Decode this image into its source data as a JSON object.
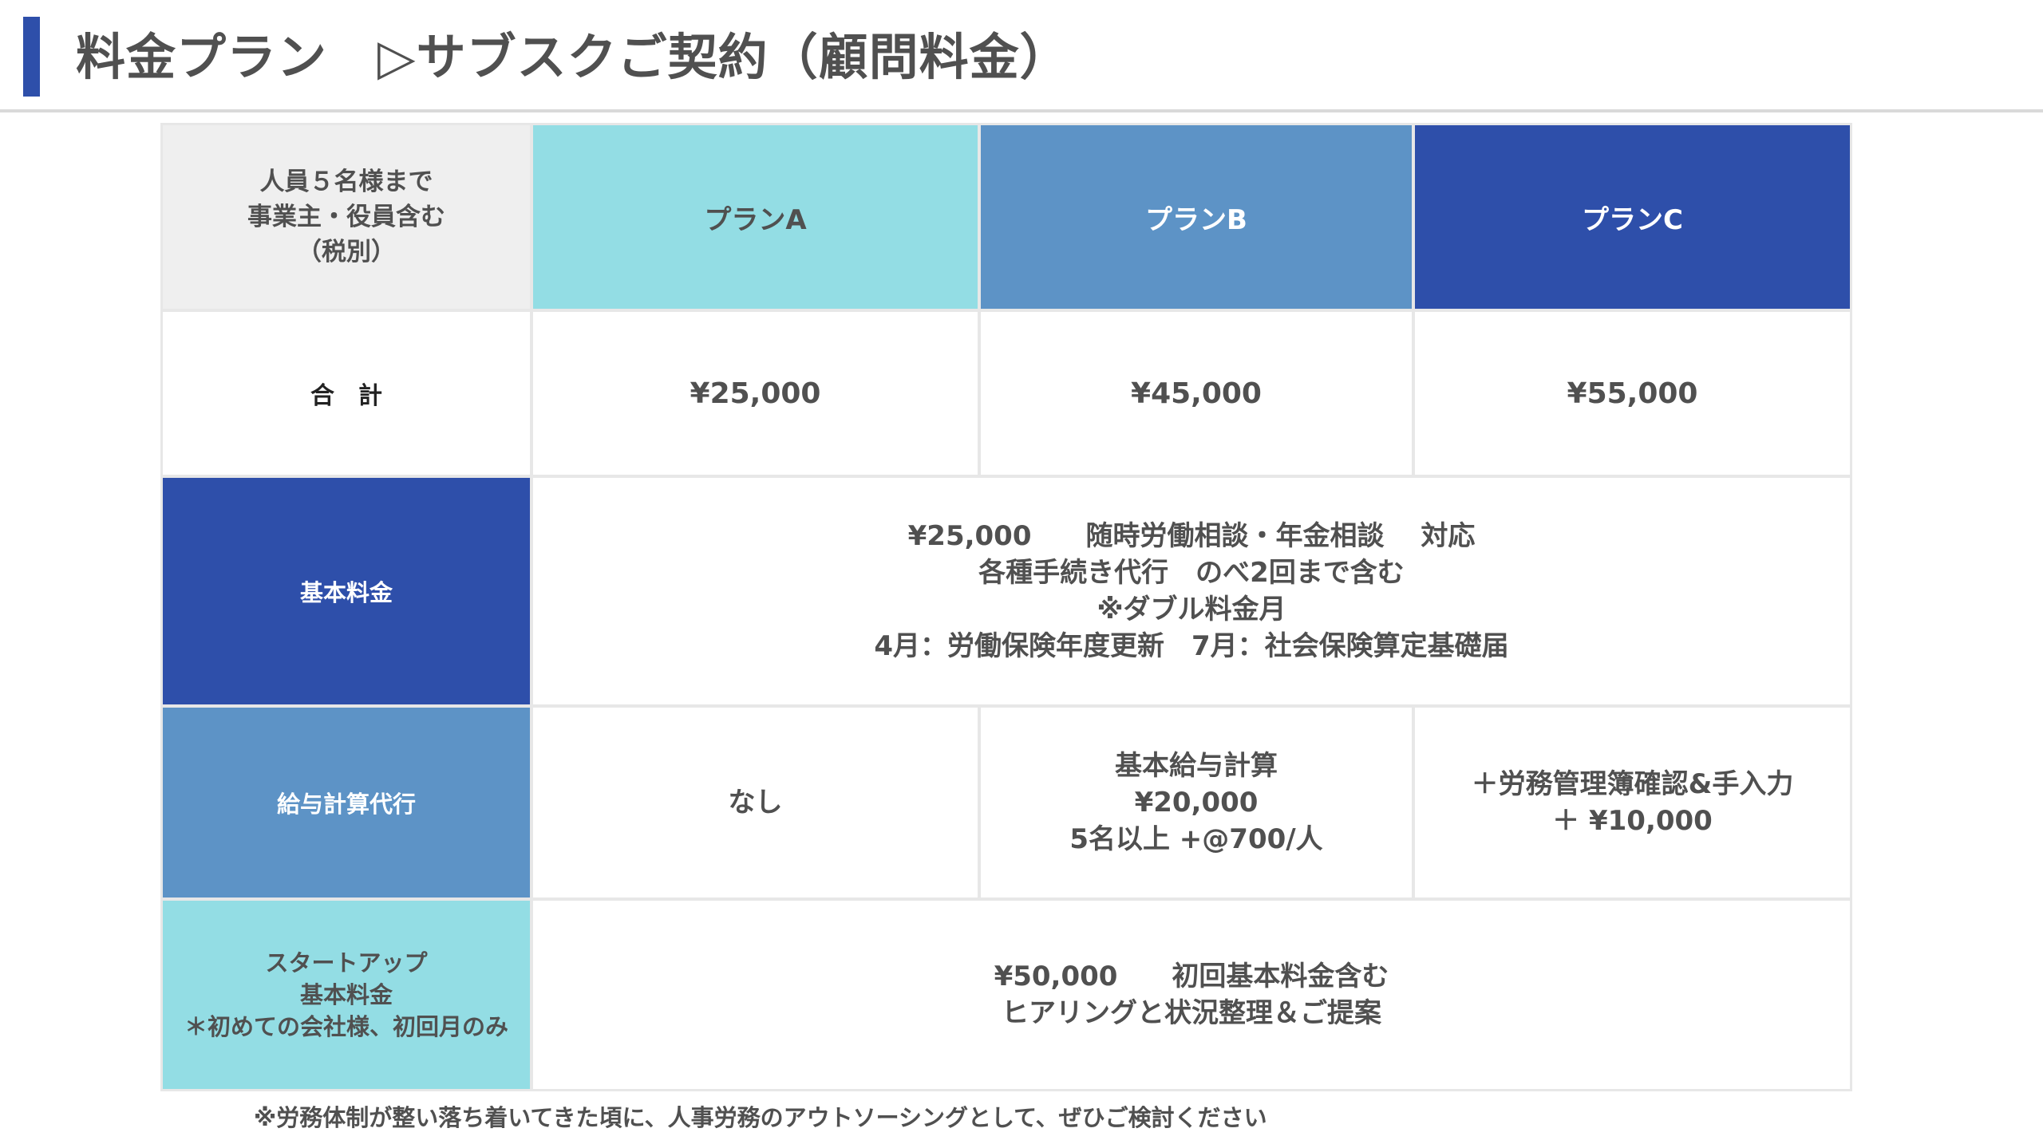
{
  "header": {
    "title": "料金プラン　▷サブスクご契約（顧問料金）"
  },
  "table": {
    "corner_label": "人員５名様まで\n事業主・役員含む\n（税別）",
    "plans": [
      "プランA",
      "プランB",
      "プランC"
    ],
    "total": {
      "label": "合　計",
      "values": [
        "¥25,000",
        "¥45,000",
        "¥55,000"
      ]
    },
    "basic_fee": {
      "label": "基本料金",
      "content": "¥25,000　　随時労働相談・年金相談　 対応\n各種手続き代行　のべ2回まで含む\n※ダブル料金月\n4月：労働保険年度更新　7月：社会保険算定基礎届"
    },
    "payroll": {
      "label": "給与計算代行",
      "values": [
        "なし",
        "基本給与計算\n¥20,000\n5名以上 +@700/人",
        "＋労務管理簿確認&手入力\n＋ ¥10,000"
      ]
    },
    "startup": {
      "label": "スタートアップ\n基本料金\n＊初めての会社様、初回月のみ",
      "content": "¥50,000　　初回基本料金含む\nヒアリングと状況整理＆ご提案"
    }
  },
  "footnote": "※労務体制が整い落ち着いてきた頃に、人事労務のアウトソーシングとして、ぜひご検討ください",
  "colors": {
    "navy": "#2e4faa",
    "mid_blue": "#5d93c6",
    "aqua": "#93dde4",
    "gray": "#efefef",
    "text": "#505050"
  }
}
